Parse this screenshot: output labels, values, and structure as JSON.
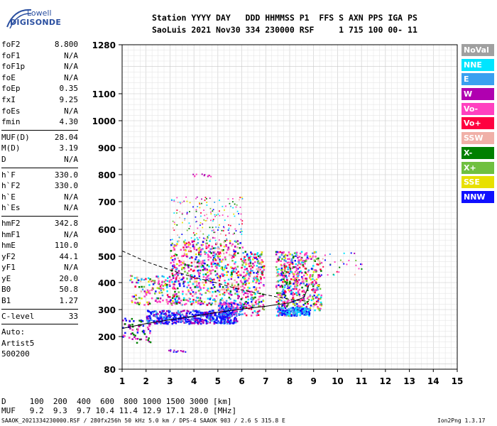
{
  "logo": {
    "line1": "Lowell",
    "line2": "DIGISONDE"
  },
  "header": {
    "line1": "Station YYYY DAY   DDD HHMMSS P1  FFS S AXN PPS IGA PS",
    "line2": "SaoLuis 2021 Nov30 334 230000 RSF     1 715 100 00- 11"
  },
  "params_group1": [
    {
      "k": "foF2",
      "v": "8.800"
    },
    {
      "k": "foF1",
      "v": "N/A"
    },
    {
      "k": "foF1p",
      "v": "N/A"
    },
    {
      "k": "foE",
      "v": "N/A"
    },
    {
      "k": "foEp",
      "v": "0.35"
    },
    {
      "k": "fxI",
      "v": "9.25"
    },
    {
      "k": "foEs",
      "v": "N/A"
    },
    {
      "k": "fmin",
      "v": "4.30"
    }
  ],
  "params_group2": [
    {
      "k": "MUF(D)",
      "v": "28.04"
    },
    {
      "k": "M(D)",
      "v": "3.19"
    },
    {
      "k": "D",
      "v": "N/A"
    }
  ],
  "params_group3": [
    {
      "k": "h`F",
      "v": "330.0"
    },
    {
      "k": "h`F2",
      "v": "330.0"
    },
    {
      "k": "h`E",
      "v": "N/A"
    },
    {
      "k": "h`Es",
      "v": "N/A"
    }
  ],
  "params_group4": [
    {
      "k": "hmF2",
      "v": "342.8"
    },
    {
      "k": "hmF1",
      "v": "N/A"
    },
    {
      "k": "hmE",
      "v": "110.0"
    },
    {
      "k": "yF2",
      "v": "44.1"
    },
    {
      "k": "yF1",
      "v": "N/A"
    },
    {
      "k": "yE",
      "v": "20.0"
    },
    {
      "k": "B0",
      "v": "50.8"
    },
    {
      "k": "B1",
      "v": "1.27"
    }
  ],
  "params_group5": [
    {
      "k": "C-level",
      "v": "33"
    }
  ],
  "auto": [
    "Auto:",
    "Artist5",
    "500200"
  ],
  "legend": [
    {
      "label": "NoVal",
      "color": "#a0a0a0"
    },
    {
      "label": "NNE",
      "color": "#00e5ff"
    },
    {
      "label": "E",
      "color": "#3aa0f0"
    },
    {
      "label": "W",
      "color": "#b000b0"
    },
    {
      "label": "Vo-",
      "color": "#ff40c0"
    },
    {
      "label": "Vo+",
      "color": "#ff0040"
    },
    {
      "label": "SSW",
      "color": "#f0b0a8"
    },
    {
      "label": "X-",
      "color": "#008000"
    },
    {
      "label": "X+",
      "color": "#70c040"
    },
    {
      "label": "SSE",
      "color": "#e8e000"
    },
    {
      "label": "NNW",
      "color": "#1010ff"
    }
  ],
  "footer": {
    "d_row": "D     100  200  400  600  800 1000 1500 3000 [km]",
    "muf_row": "MUF   9.2  9.3  9.7 10.4 11.4 12.9 17.1 28.0 [MHz]",
    "info": "SAAOK_2021334230000.RSF / 280fx256h 50 kHz 5.0 km / DPS-4 SAAOK 903 / 2.6 S 315.8 E",
    "version": "Ion2Png 1.3.17"
  },
  "chart_data": {
    "type": "scatter",
    "xlim": [
      1,
      15
    ],
    "ylim": [
      80,
      1280
    ],
    "x_ticks": [
      "1",
      "2",
      "3",
      "4",
      "5",
      "6",
      "7",
      "8",
      "9",
      "10",
      "11",
      "12",
      "13",
      "14",
      "15"
    ],
    "y_ticks": [
      "80",
      "200",
      "300",
      "400",
      "500",
      "600",
      "700",
      "800",
      "900",
      "1000",
      "1100",
      "1280"
    ],
    "y_tick_values": [
      80,
      200,
      300,
      400,
      500,
      600,
      700,
      800,
      900,
      1000,
      1100,
      1280
    ],
    "grid": true,
    "profile_curve": [
      [
        1.0,
        230
      ],
      [
        2.0,
        248
      ],
      [
        3.0,
        262
      ],
      [
        4.0,
        275
      ],
      [
        5.0,
        290
      ],
      [
        6.0,
        302
      ],
      [
        7.0,
        312
      ],
      [
        8.0,
        325
      ],
      [
        8.6,
        345
      ],
      [
        8.8,
        390
      ]
    ],
    "muf_curve": [
      [
        1.0,
        520
      ],
      [
        2.0,
        480
      ],
      [
        3.0,
        448
      ],
      [
        4.0,
        420
      ],
      [
        5.0,
        398
      ],
      [
        6.0,
        372
      ],
      [
        7.0,
        355
      ],
      [
        8.0,
        338
      ],
      [
        8.8,
        330
      ]
    ]
  }
}
